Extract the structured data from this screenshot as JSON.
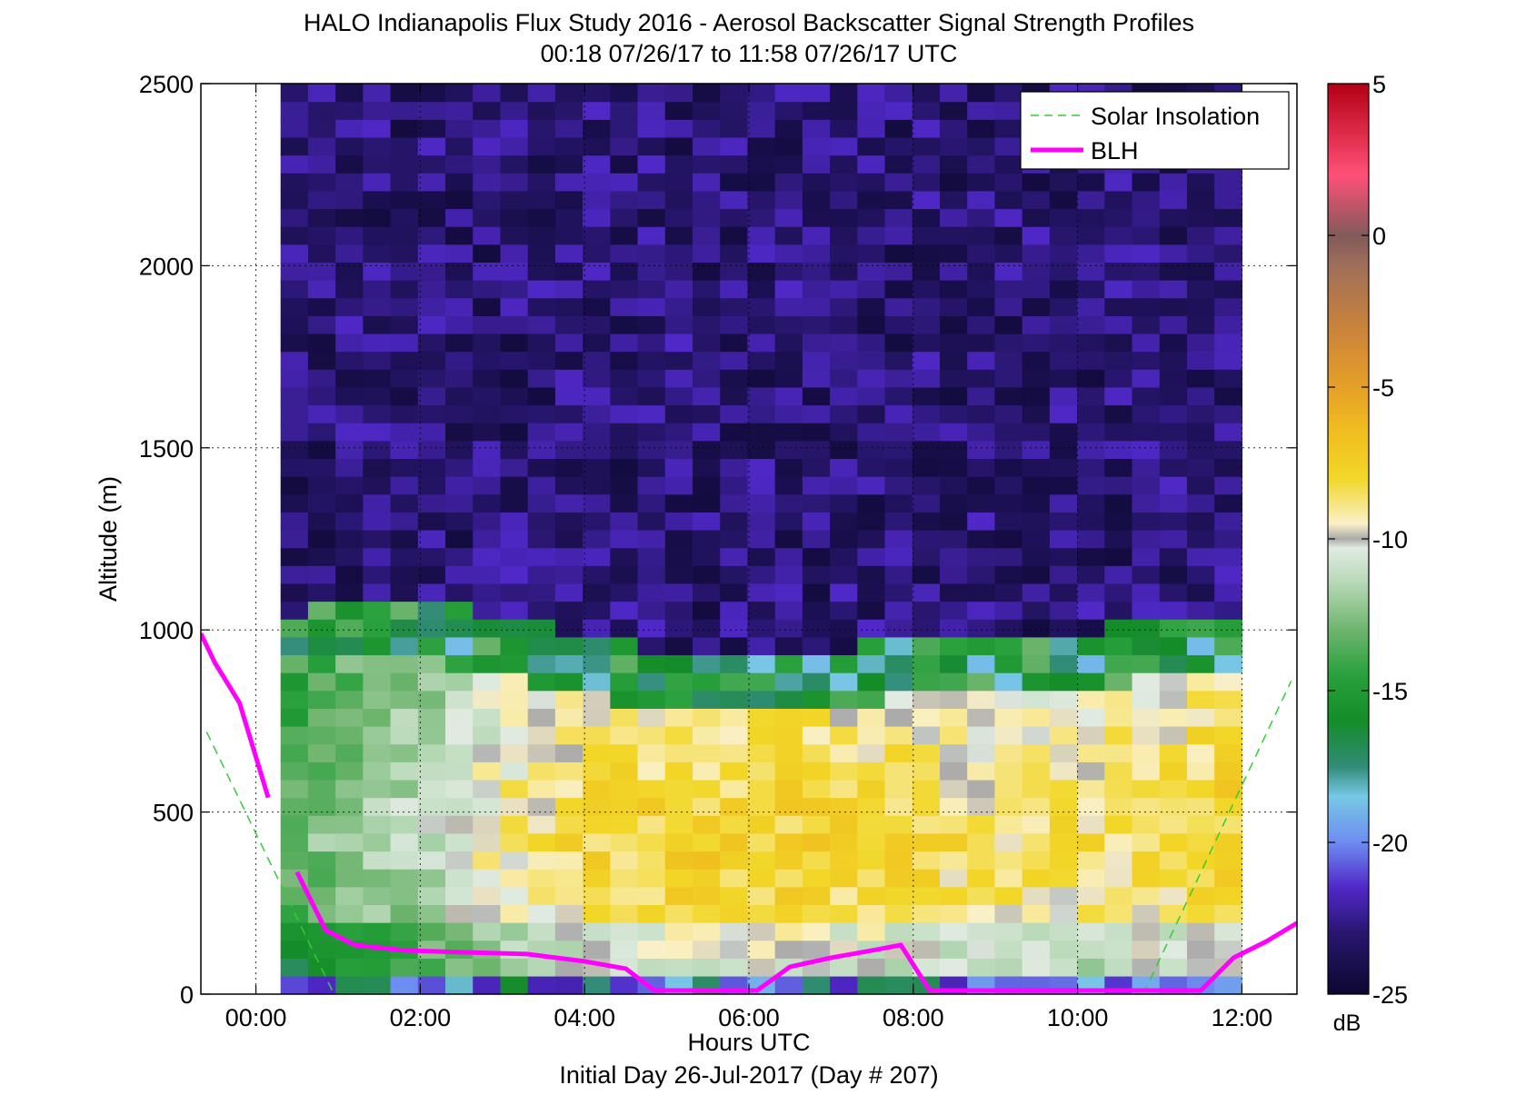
{
  "chart_data": {
    "type": "heatmap",
    "title": "HALO Indianapolis Flux Study 2016 - Aerosol Backscatter Signal Strength Profiles",
    "subtitle": "00:18 07/26/17 to 11:58 07/26/17  UTC",
    "xlabel": "Hours UTC",
    "xlabel2": "Initial Day 26-Jul-2017 (Day # 207)",
    "ylabel": "Altitude (m)",
    "xlim": [
      -0.67,
      12.67
    ],
    "ylim": [
      0,
      2500
    ],
    "x_ticks": [
      0,
      2,
      4,
      6,
      8,
      10,
      12
    ],
    "x_tick_labels": [
      "00:00",
      "02:00",
      "04:00",
      "06:00",
      "08:00",
      "10:00",
      "12:00"
    ],
    "y_ticks": [
      0,
      500,
      1000,
      1500,
      2000,
      2500
    ],
    "y_tick_labels": [
      "0",
      "500",
      "1000",
      "1500",
      "2000",
      "2500"
    ],
    "grid": true,
    "legend_position": "top-right",
    "colorbar": {
      "label": "dB",
      "range": [
        -25,
        5
      ],
      "ticks": [
        5,
        0,
        -5,
        -10,
        -15,
        -20,
        -25
      ],
      "tick_labels": [
        "5",
        "0",
        "-5",
        "-10",
        "-15",
        "-20",
        "-25"
      ]
    },
    "heatmap": {
      "x_start": 0.3,
      "x_end": 12.0,
      "y_start": 50,
      "y_end": 2500,
      "n_cols": 35,
      "n_rows": 50,
      "profiles": [
        {
          "x": 0.3,
          "layer_top": 1000,
          "value": -13.5
        },
        {
          "x": 1.0,
          "layer_top": 1050,
          "value": -12.0
        },
        {
          "x": 2.0,
          "layer_top": 1050,
          "value": -11.0
        },
        {
          "x": 3.0,
          "layer_top": 1000,
          "value": -9.0
        },
        {
          "x": 4.0,
          "layer_top": 950,
          "value": -8.0
        },
        {
          "x": 5.0,
          "layer_top": 900,
          "value": -7.5
        },
        {
          "x": 6.0,
          "layer_top": 900,
          "value": -7.5
        },
        {
          "x": 7.0,
          "layer_top": 900,
          "value": -7.5
        },
        {
          "x": 8.0,
          "layer_top": 950,
          "value": -8.0
        },
        {
          "x": 9.0,
          "layer_top": 950,
          "value": -8.5
        },
        {
          "x": 10.0,
          "layer_top": 950,
          "value": -8.5
        },
        {
          "x": 11.0,
          "layer_top": 1000,
          "value": -8.0
        },
        {
          "x": 12.0,
          "layer_top": 1000,
          "value": -7.5
        }
      ],
      "aloft_value": -23
    },
    "series": [
      {
        "name": "Solar Insolation",
        "style": "dashed",
        "color": "#33cc33",
        "segments": [
          {
            "x": [
              -0.6,
              0.95
            ],
            "y": [
              720,
              0
            ]
          },
          {
            "x": [
              10.8,
              12.6
            ],
            "y": [
              0,
              860
            ]
          }
        ]
      },
      {
        "name": "BLH",
        "style": "solid",
        "color": "#ff00ff",
        "segments": [
          {
            "x": [
              -0.67,
              -0.5,
              -0.2,
              0.15
            ],
            "y": [
              990,
              910,
              800,
              540
            ]
          },
          {
            "x": [
              0.5,
              0.85,
              1.2,
              1.8,
              2.5,
              3.3,
              4.0,
              4.5,
              4.85,
              5.4,
              6.1,
              6.5,
              7.0,
              7.5,
              7.85,
              8.2,
              9.0,
              10.0,
              11.0,
              11.5,
              11.9,
              12.3,
              12.67
            ],
            "y": [
              335,
              175,
              135,
              120,
              115,
              110,
              90,
              70,
              10,
              10,
              10,
              75,
              100,
              120,
              135,
              10,
              10,
              10,
              10,
              10,
              100,
              145,
              195
            ]
          }
        ]
      }
    ]
  }
}
